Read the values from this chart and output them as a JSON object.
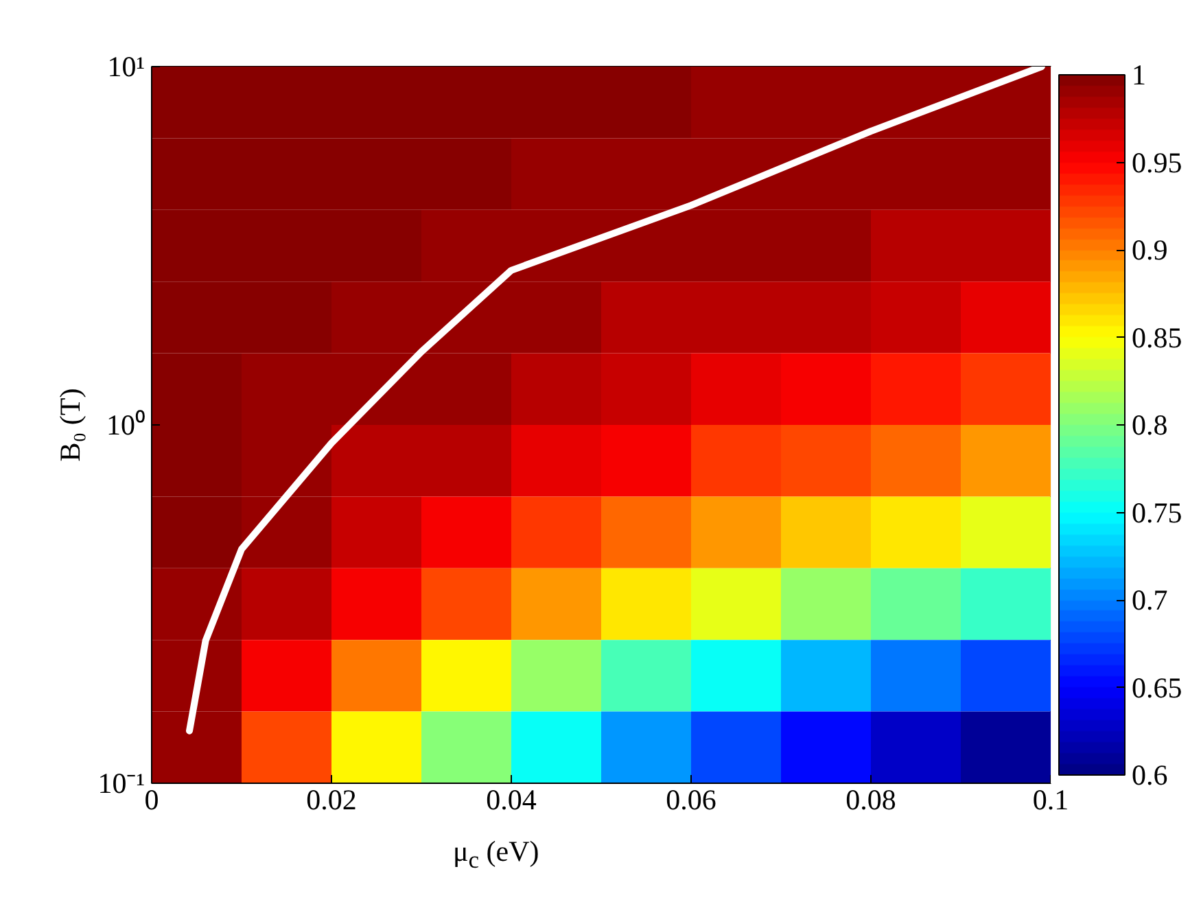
{
  "chart_data": {
    "type": "heatmap",
    "xlabel": "μ$_{c}$ (eV)",
    "ylabel": "B₀ (T)",
    "xlim": [
      0,
      0.1
    ],
    "xticks": [
      0,
      0.02,
      0.04,
      0.06,
      0.08,
      0.1
    ],
    "ylim": [
      0.1,
      10
    ],
    "yticks": [
      {
        "value": 0.1,
        "label": "10⁻¹"
      },
      {
        "value": 1,
        "label": "10⁰"
      },
      {
        "value": 10,
        "label": "10¹"
      }
    ],
    "log": "y",
    "grid": false,
    "clim": [
      0.6,
      1
    ],
    "cticks": [
      0.6,
      0.65,
      0.7,
      0.75,
      0.8,
      0.85,
      0.9,
      0.95,
      1
    ],
    "cells": [
      [
        1.0,
        1.0,
        1.0,
        1.0,
        1.0,
        1.0,
        0.99,
        0.99,
        0.99,
        0.99
      ],
      [
        1.0,
        1.0,
        1.0,
        1.0,
        0.99,
        0.99,
        0.99,
        0.99,
        0.99,
        0.99
      ],
      [
        1.0,
        1.0,
        1.0,
        0.99,
        0.99,
        0.99,
        0.99,
        0.99,
        0.98,
        0.98
      ],
      [
        1.0,
        1.0,
        0.99,
        0.99,
        0.99,
        0.98,
        0.98,
        0.98,
        0.97,
        0.96
      ],
      [
        1.0,
        0.99,
        0.99,
        0.99,
        0.98,
        0.97,
        0.96,
        0.95,
        0.94,
        0.93
      ],
      [
        1.0,
        0.99,
        0.98,
        0.98,
        0.96,
        0.95,
        0.93,
        0.92,
        0.91,
        0.89
      ],
      [
        1.0,
        0.99,
        0.97,
        0.95,
        0.93,
        0.91,
        0.89,
        0.87,
        0.86,
        0.84
      ],
      [
        0.99,
        0.98,
        0.95,
        0.92,
        0.89,
        0.86,
        0.84,
        0.81,
        0.79,
        0.77
      ],
      [
        0.99,
        0.95,
        0.9,
        0.85,
        0.81,
        0.78,
        0.75,
        0.72,
        0.7,
        0.68
      ],
      [
        0.99,
        0.92,
        0.85,
        0.8,
        0.75,
        0.71,
        0.68,
        0.65,
        0.63,
        0.61
      ]
    ],
    "series": [
      {
        "type": "line",
        "color": "#ffffff",
        "x": [
          0.0042,
          0.006,
          0.01,
          0.02,
          0.03,
          0.04,
          0.06,
          0.08,
          0.099
        ],
        "values": [
          0.14,
          0.25,
          0.45,
          0.89,
          1.6,
          2.7,
          4.1,
          6.6,
          10
        ]
      }
    ]
  }
}
